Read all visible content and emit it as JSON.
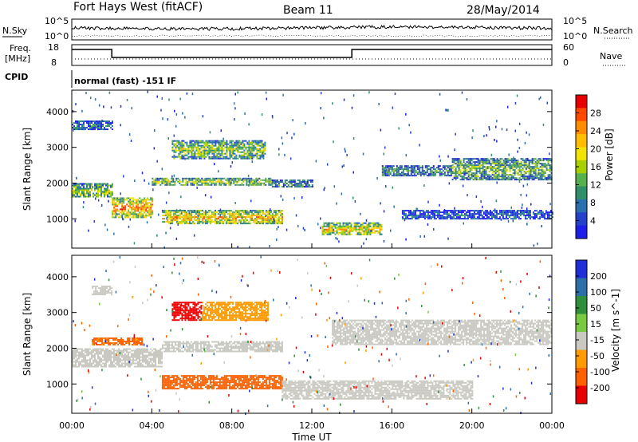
{
  "header": {
    "station": "Fort Hays West (fitACF)",
    "beam": "Beam 11",
    "date": "28/May/2014"
  },
  "side_labels": {
    "nsky": "N.Sky",
    "nsearch": "N.Search",
    "freq": "Freq.",
    "freq_unit": "[MHz]",
    "nave": "Nave",
    "cpid": "CPID"
  },
  "noise_panel": {
    "left_ticks": [
      "10^5",
      "10^0"
    ],
    "right_ticks": [
      "10^5",
      "10^0"
    ]
  },
  "freq_panel": {
    "left_ticks": [
      "18",
      "8"
    ],
    "right_ticks": [
      "60",
      "0"
    ]
  },
  "cpid_text": "normal (fast) -151 IF",
  "time_ticks": [
    "00:00",
    "04:00",
    "08:00",
    "12:00",
    "16:00",
    "20:00",
    "00:00"
  ],
  "xlabel": "Time UT",
  "chart_data": [
    {
      "type": "heatmap",
      "name": "power",
      "ylabel": "Slant Range [km]",
      "yticks": [
        1000,
        2000,
        3000,
        4000
      ],
      "ylim": [
        180,
        4600
      ],
      "xlim_hours": [
        0,
        24
      ],
      "colorbar": {
        "label": "Power [dB]",
        "ticks": [
          "28",
          "24",
          "20",
          "16",
          "12",
          "8",
          "4"
        ],
        "colors": [
          "#e80000",
          "#ff4a00",
          "#ff8c00",
          "#ffbe00",
          "#f2e400",
          "#a8d000",
          "#56b04e",
          "#2f8f6a",
          "#2a6fae",
          "#2540c9",
          "#1e1ee8"
        ]
      },
      "regions": [
        {
          "t": [
            0.0,
            2.0
          ],
          "r": [
            1600,
            2000
          ],
          "dB": 16
        },
        {
          "t": [
            0.0,
            2.0
          ],
          "r": [
            3500,
            3750
          ],
          "dB": 8
        },
        {
          "t": [
            2.0,
            4.0
          ],
          "r": [
            1050,
            1600
          ],
          "dB": 24
        },
        {
          "t": [
            4.0,
            10.0
          ],
          "r": [
            1950,
            2150
          ],
          "dB": 16
        },
        {
          "t": [
            5.0,
            9.7
          ],
          "r": [
            2700,
            3200
          ],
          "dB": 16
        },
        {
          "t": [
            4.5,
            10.5
          ],
          "r": [
            850,
            1250
          ],
          "dB": 22
        },
        {
          "t": [
            10.0,
            12.0
          ],
          "r": [
            1900,
            2100
          ],
          "dB": 10
        },
        {
          "t": [
            12.5,
            15.5
          ],
          "r": [
            550,
            900
          ],
          "dB": 20
        },
        {
          "t": [
            15.5,
            19.0
          ],
          "r": [
            2200,
            2500
          ],
          "dB": 10
        },
        {
          "t": [
            16.5,
            24.0
          ],
          "r": [
            1000,
            1250
          ],
          "dB": 6
        },
        {
          "t": [
            19.0,
            24.0
          ],
          "r": [
            2100,
            2700
          ],
          "dB": 14
        }
      ]
    },
    {
      "type": "heatmap",
      "name": "velocity",
      "ylabel": "Slant Range [km]",
      "yticks": [
        1000,
        2000,
        3000,
        4000
      ],
      "ylim": [
        180,
        4600
      ],
      "xlim_hours": [
        0,
        24
      ],
      "colorbar": {
        "label": "Velocity [m s^-1]",
        "ticks": [
          "200",
          "100",
          "50",
          "15",
          "-15",
          "-50",
          "-100",
          "-200"
        ],
        "colors": [
          "#1e2fd8",
          "#2c6ea8",
          "#2f8f3a",
          "#7ac943",
          "#c9c9c1",
          "#ff9b00",
          "#ff6000",
          "#e80000"
        ]
      },
      "regions": [
        {
          "t": [
            0.0,
            4.5
          ],
          "r": [
            1500,
            2000
          ],
          "v": 0
        },
        {
          "t": [
            1.0,
            2.0
          ],
          "r": [
            3500,
            3750
          ],
          "v": 0
        },
        {
          "t": [
            1.0,
            3.5
          ],
          "r": [
            2100,
            2300
          ],
          "v": -60
        },
        {
          "t": [
            4.5,
            10.5
          ],
          "r": [
            1900,
            2200
          ],
          "v": 0
        },
        {
          "t": [
            5.0,
            6.5
          ],
          "r": [
            2800,
            3300
          ],
          "v": -200
        },
        {
          "t": [
            6.5,
            9.8
          ],
          "r": [
            2800,
            3300
          ],
          "v": -30
        },
        {
          "t": [
            4.5,
            10.5
          ],
          "r": [
            850,
            1250
          ],
          "v": -80
        },
        {
          "t": [
            10.5,
            20.0
          ],
          "r": [
            600,
            1100
          ],
          "v": 0
        },
        {
          "t": [
            13.0,
            24.0
          ],
          "r": [
            2100,
            2800
          ],
          "v": 0
        }
      ]
    }
  ]
}
